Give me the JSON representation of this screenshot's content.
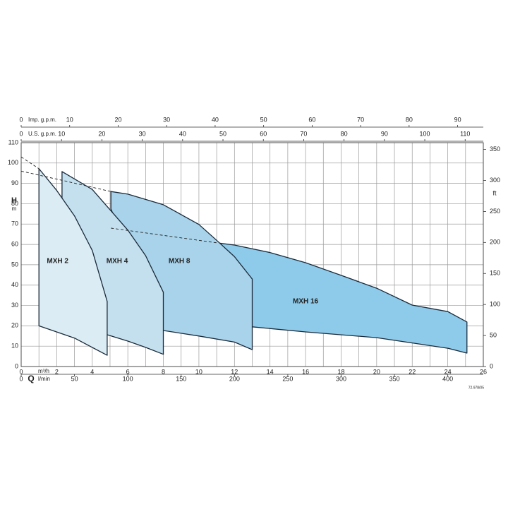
{
  "chart_data": {
    "type": "pump-curves",
    "x_label": "Q",
    "x_unit": "m³/h",
    "y_label": "H",
    "y_unit": "m",
    "y2_unit": "ft",
    "xlim": [
      0,
      26
    ],
    "xticks": [
      0,
      2,
      4,
      6,
      8,
      10,
      12,
      14,
      16,
      18,
      20,
      22,
      24,
      26
    ],
    "xminor": [
      1,
      3,
      5,
      7,
      9,
      11,
      13,
      15,
      17,
      19,
      21,
      23,
      25
    ],
    "ylim": [
      0,
      110
    ],
    "yticks": [
      0,
      10,
      20,
      30,
      40,
      50,
      60,
      70,
      80,
      90,
      100,
      110
    ],
    "y2lim": [
      0,
      360.9
    ],
    "y2ticks": [
      0,
      50,
      100,
      150,
      200,
      250,
      300,
      350
    ],
    "grid": true,
    "extra_axes": [
      {
        "name": "l/min",
        "position": "bottom",
        "lim": [
          0,
          433.3
        ],
        "ticks": [
          0,
          50,
          100,
          150,
          200,
          250,
          300,
          350,
          400
        ]
      },
      {
        "name": "Imp. g.p.m.",
        "position": "top",
        "lim": [
          0,
          95.3
        ],
        "ticks": [
          0,
          10,
          20,
          30,
          40,
          50,
          60,
          70,
          80,
          90
        ]
      },
      {
        "name": "U.S. g.p.m.",
        "position": "top",
        "lim": [
          0,
          114.5
        ],
        "ticks": [
          0,
          10,
          20,
          30,
          40,
          50,
          60,
          70,
          80,
          90,
          100,
          110
        ]
      }
    ],
    "series": [
      {
        "name": "MXH 2",
        "color": "#dcecf5",
        "upper": {
          "x": [
            1,
            2,
            3,
            4,
            4.84
          ],
          "values": [
            97.2,
            86.5,
            74,
            57,
            32
          ]
        },
        "lower": {
          "x": [
            1,
            3,
            4.84
          ],
          "values": [
            20,
            14,
            5.5
          ]
        }
      },
      {
        "name": "MXH 4",
        "color": "#c4e0ef",
        "upper": {
          "x": [
            2.3,
            4,
            5,
            6,
            7,
            8
          ],
          "values": [
            95.8,
            87,
            77,
            67,
            54.5,
            36.5
          ]
        },
        "lower": {
          "x": [
            2.3,
            4.84,
            6,
            7,
            8
          ],
          "values": [
            82.6,
            15.6,
            12.5,
            9.4,
            6
          ]
        }
      },
      {
        "name": "MXH 8",
        "color": "#a8d3ea",
        "upper": {
          "x": [
            5.05,
            6,
            8,
            10,
            11,
            12,
            13
          ],
          "values": [
            86,
            84.7,
            79.5,
            69.8,
            62,
            54,
            43
          ]
        },
        "lower": {
          "x": [
            5.05,
            8,
            10,
            12,
            13
          ],
          "values": [
            77.4,
            17.7,
            15,
            12,
            8.3
          ]
        }
      },
      {
        "name": "MXH 16",
        "color": "#8ecbea",
        "upper": {
          "x": [
            11,
            12,
            14,
            16,
            18,
            20,
            22,
            24,
            25.08
          ],
          "values": [
            60.8,
            59.7,
            56,
            51,
            44.8,
            38.5,
            30.2,
            27,
            21.9
          ]
        },
        "lower": {
          "x": [
            11,
            13,
            16,
            20,
            24,
            25.08
          ],
          "values": [
            61,
            19.5,
            17,
            14.2,
            9,
            6.6
          ]
        }
      }
    ],
    "dashed": [
      {
        "x": [
          0,
          1
        ],
        "values": [
          103,
          97.2
        ]
      },
      {
        "x": [
          0,
          2.3,
          5.05
        ],
        "values": [
          96,
          91.5,
          86
        ]
      },
      {
        "x": [
          5.05,
          11
        ],
        "values": [
          68,
          60.8
        ]
      }
    ],
    "code": "72.978/05"
  }
}
